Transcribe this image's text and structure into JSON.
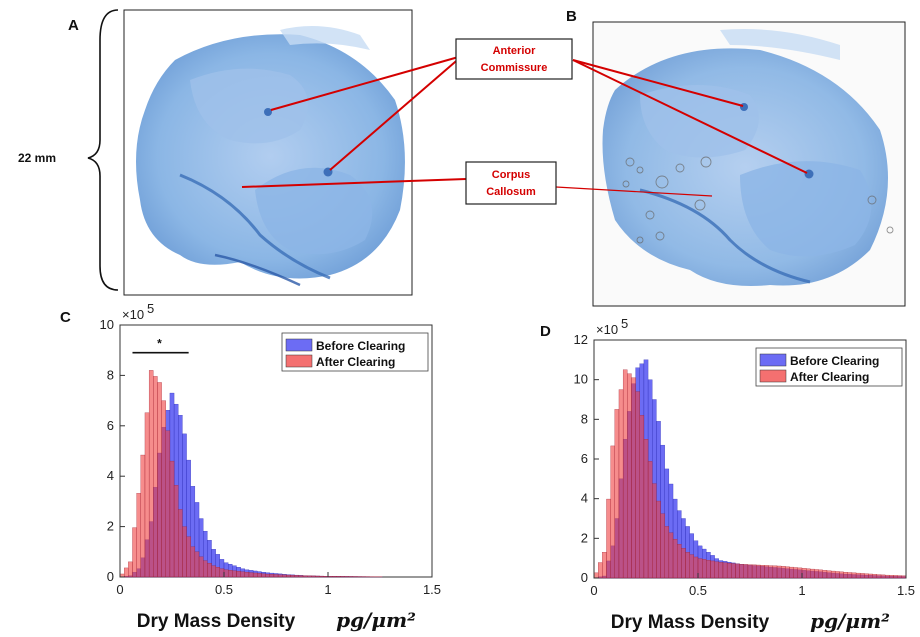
{
  "panels": {
    "a": "A",
    "b": "B",
    "c": "C",
    "d": "D"
  },
  "scale_bar_label": "22 mm",
  "annotations": {
    "anterior_commissure": [
      "Anterior",
      "Commissure"
    ],
    "corpus_callosum": [
      "Corpus",
      "Callosum"
    ]
  },
  "colors": {
    "before": "#3b3bf0",
    "after": "#f04040",
    "overlap": "#b0004a",
    "label_red": "#d40000",
    "tissue_blue": "#6fa6de"
  },
  "chart_data": [
    {
      "type": "bar",
      "panel": "C",
      "xlabel": "Dry Mass Density",
      "xunit": "pg/μm²",
      "ylabel": "",
      "y_multiplier": "×10",
      "y_exponent": "5",
      "xlim": [
        0,
        1.5
      ],
      "ylim": [
        0,
        10
      ],
      "xticks": [
        "0",
        "0.5",
        "1",
        "1.5"
      ],
      "yticks": [
        "0",
        "2",
        "4",
        "6",
        "8",
        "10"
      ],
      "significance": "*",
      "legend_position": "top-right",
      "series": [
        {
          "name": "Before Clearing",
          "color": "#3b3bf0",
          "x": [
            0.05,
            0.1,
            0.15,
            0.2,
            0.25,
            0.3,
            0.35,
            0.4,
            0.45,
            0.5,
            0.6,
            0.7,
            0.8,
            0.9,
            1.0
          ],
          "y": [
            0.05,
            0.4,
            2.2,
            5.6,
            7.3,
            6.2,
            3.6,
            2.0,
            1.1,
            0.6,
            0.3,
            0.18,
            0.1,
            0.05,
            0.03
          ]
        },
        {
          "name": "After Clearing",
          "color": "#f04040",
          "x": [
            0.05,
            0.1,
            0.15,
            0.2,
            0.25,
            0.3,
            0.35,
            0.4,
            0.45,
            0.5,
            0.6,
            0.7,
            0.8,
            0.9,
            1.0
          ],
          "y": [
            0.6,
            4.0,
            8.2,
            7.6,
            4.6,
            2.2,
            1.2,
            0.7,
            0.45,
            0.3,
            0.2,
            0.12,
            0.08,
            0.05,
            0.03
          ]
        }
      ]
    },
    {
      "type": "bar",
      "panel": "D",
      "xlabel": "Dry Mass Density",
      "xunit": "pg/μm²",
      "ylabel": "",
      "y_multiplier": "×10",
      "y_exponent": "5",
      "xlim": [
        0,
        1.5
      ],
      "ylim": [
        0,
        12
      ],
      "xticks": [
        "0",
        "0.5",
        "1",
        "1.5"
      ],
      "yticks": [
        "0",
        "2",
        "4",
        "6",
        "8",
        "10",
        "12"
      ],
      "legend_position": "top-right",
      "series": [
        {
          "name": "Before Clearing",
          "color": "#3b3bf0",
          "x": [
            0.05,
            0.1,
            0.15,
            0.2,
            0.25,
            0.3,
            0.35,
            0.4,
            0.45,
            0.5,
            0.6,
            0.7,
            0.8,
            0.9,
            1.0,
            1.2,
            1.4
          ],
          "y": [
            0.1,
            2.0,
            7.0,
            10.5,
            11.0,
            8.5,
            5.5,
            3.6,
            2.6,
            1.7,
            0.9,
            0.7,
            0.6,
            0.5,
            0.4,
            0.2,
            0.1
          ]
        },
        {
          "name": "After Clearing",
          "color": "#f04040",
          "x": [
            0.05,
            0.1,
            0.15,
            0.2,
            0.25,
            0.3,
            0.35,
            0.4,
            0.45,
            0.5,
            0.6,
            0.7,
            0.8,
            0.9,
            1.0,
            1.2,
            1.4
          ],
          "y": [
            1.3,
            8.0,
            10.5,
            10.0,
            7.0,
            4.2,
            2.6,
            1.8,
            1.3,
            1.0,
            0.8,
            0.7,
            0.65,
            0.6,
            0.5,
            0.3,
            0.15
          ]
        }
      ]
    }
  ]
}
